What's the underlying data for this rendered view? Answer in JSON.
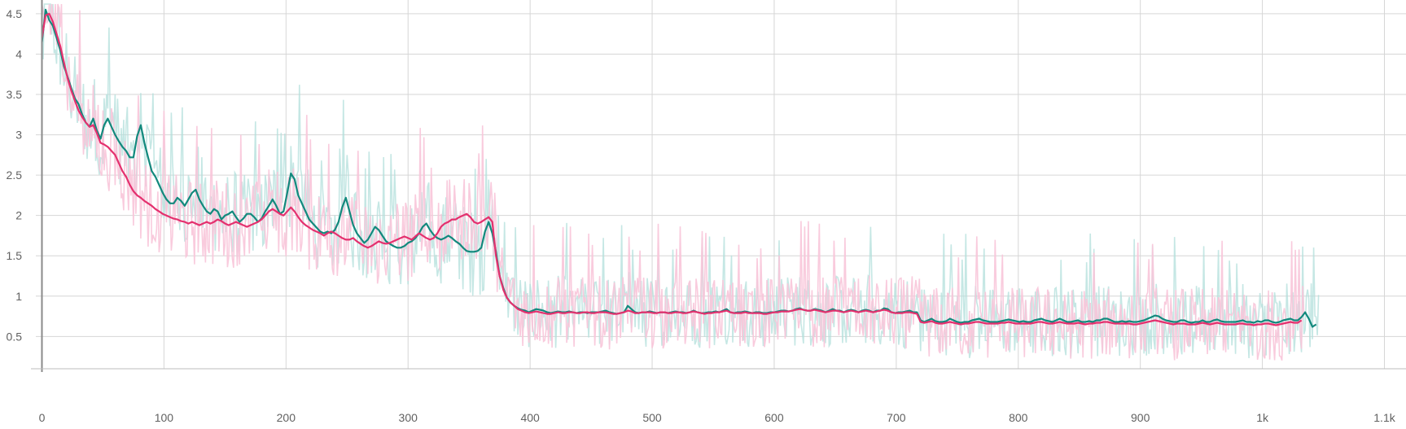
{
  "chart_data": {
    "type": "line",
    "title": "",
    "xlabel": "",
    "ylabel": "",
    "xlim": [
      -5,
      1105
    ],
    "ylim": [
      0.1,
      4.62
    ],
    "grid": true,
    "legend": "none",
    "x_ticks": [
      0,
      100,
      200,
      300,
      400,
      500,
      600,
      700,
      800,
      900,
      1000,
      1100
    ],
    "x_tick_labels": [
      "0",
      "100",
      "200",
      "300",
      "400",
      "500",
      "600",
      "700",
      "800",
      "900",
      "1k",
      "1.1k"
    ],
    "y_ticks": [
      0.5,
      1,
      1.5,
      2,
      2.5,
      3,
      3.5,
      4,
      4.5
    ],
    "y_tick_labels": [
      "0.5",
      "1",
      "1.5",
      "2",
      "2.5",
      "3",
      "3.5",
      "4",
      "4.5"
    ],
    "series": [
      {
        "color": "#12897d",
        "raw_color": "#b2dfdb",
        "x_step": 3,
        "smoothed": [
          4.15,
          4.55,
          4.42,
          4.35,
          4.2,
          4.05,
          3.85,
          3.72,
          3.58,
          3.45,
          3.38,
          3.25,
          3.15,
          3.1,
          3.2,
          3.05,
          2.95,
          3.12,
          3.2,
          3.1,
          3.0,
          2.92,
          2.85,
          2.8,
          2.72,
          2.72,
          2.98,
          3.12,
          2.9,
          2.72,
          2.55,
          2.48,
          2.38,
          2.28,
          2.2,
          2.15,
          2.15,
          2.22,
          2.18,
          2.12,
          2.2,
          2.28,
          2.32,
          2.2,
          2.12,
          2.05,
          2.02,
          2.08,
          2.05,
          1.95,
          2.0,
          2.02,
          2.05,
          1.98,
          1.92,
          1.96,
          2.02,
          2.02,
          1.98,
          1.92,
          1.96,
          2.05,
          2.12,
          2.2,
          2.12,
          2.02,
          2.05,
          2.28,
          2.52,
          2.45,
          2.25,
          2.15,
          2.05,
          1.95,
          1.9,
          1.85,
          1.8,
          1.78,
          1.8,
          1.78,
          1.82,
          1.92,
          2.1,
          2.22,
          2.05,
          1.88,
          1.78,
          1.72,
          1.66,
          1.7,
          1.78,
          1.86,
          1.82,
          1.75,
          1.68,
          1.65,
          1.62,
          1.6,
          1.6,
          1.62,
          1.66,
          1.68,
          1.72,
          1.78,
          1.86,
          1.9,
          1.82,
          1.76,
          1.72,
          1.7,
          1.72,
          1.75,
          1.72,
          1.68,
          1.65,
          1.6,
          1.56,
          1.55,
          1.55,
          1.56,
          1.6,
          1.8,
          1.92,
          1.78,
          1.55,
          1.25,
          1.1,
          0.98,
          0.92,
          0.88,
          0.85,
          0.83,
          0.82,
          0.8,
          0.82,
          0.84,
          0.83,
          0.82,
          0.8,
          0.79,
          0.8,
          0.81,
          0.8,
          0.8,
          0.81,
          0.8,
          0.79,
          0.8,
          0.8,
          0.79,
          0.8,
          0.8,
          0.8,
          0.81,
          0.82,
          0.8,
          0.79,
          0.78,
          0.79,
          0.8,
          0.88,
          0.84,
          0.8,
          0.79,
          0.8,
          0.8,
          0.81,
          0.8,
          0.79,
          0.8,
          0.8,
          0.79,
          0.8,
          0.81,
          0.8,
          0.8,
          0.79,
          0.8,
          0.82,
          0.8,
          0.79,
          0.79,
          0.8,
          0.8,
          0.81,
          0.8,
          0.82,
          0.84,
          0.8,
          0.79,
          0.8,
          0.8,
          0.81,
          0.8,
          0.79,
          0.8,
          0.8,
          0.79,
          0.79,
          0.8,
          0.8,
          0.81,
          0.82,
          0.82,
          0.81,
          0.82,
          0.84,
          0.85,
          0.83,
          0.82,
          0.82,
          0.84,
          0.83,
          0.82,
          0.8,
          0.82,
          0.84,
          0.82,
          0.82,
          0.8,
          0.82,
          0.83,
          0.82,
          0.8,
          0.82,
          0.83,
          0.82,
          0.8,
          0.82,
          0.82,
          0.85,
          0.84,
          0.8,
          0.79,
          0.8,
          0.8,
          0.81,
          0.82,
          0.8,
          0.8,
          0.7,
          0.68,
          0.7,
          0.72,
          0.69,
          0.68,
          0.68,
          0.69,
          0.72,
          0.7,
          0.68,
          0.67,
          0.68,
          0.68,
          0.7,
          0.71,
          0.72,
          0.7,
          0.69,
          0.68,
          0.68,
          0.68,
          0.69,
          0.7,
          0.71,
          0.7,
          0.69,
          0.68,
          0.69,
          0.68,
          0.68,
          0.7,
          0.71,
          0.72,
          0.7,
          0.69,
          0.68,
          0.7,
          0.72,
          0.7,
          0.68,
          0.68,
          0.69,
          0.7,
          0.68,
          0.68,
          0.69,
          0.68,
          0.7,
          0.7,
          0.72,
          0.72,
          0.7,
          0.68,
          0.68,
          0.69,
          0.68,
          0.69,
          0.68,
          0.68,
          0.69,
          0.7,
          0.72,
          0.74,
          0.76,
          0.75,
          0.72,
          0.7,
          0.69,
          0.68,
          0.68,
          0.7,
          0.7,
          0.68,
          0.67,
          0.68,
          0.68,
          0.7,
          0.68,
          0.68,
          0.7,
          0.71,
          0.69,
          0.68,
          0.68,
          0.68,
          0.68,
          0.69,
          0.7,
          0.68,
          0.68,
          0.67,
          0.69,
          0.68,
          0.7,
          0.7,
          0.68,
          0.67,
          0.68,
          0.7,
          0.71,
          0.72,
          0.7,
          0.7,
          0.74,
          0.8,
          0.72,
          0.62,
          0.65
        ]
      },
      {
        "color": "#e4306e",
        "raw_color": "#f8c5d9",
        "x_step": 3,
        "smoothed": [
          4.2,
          4.48,
          4.5,
          4.4,
          4.25,
          4.1,
          3.9,
          3.7,
          3.55,
          3.42,
          3.3,
          3.22,
          3.15,
          3.1,
          3.12,
          3.02,
          2.9,
          2.88,
          2.85,
          2.8,
          2.75,
          2.65,
          2.55,
          2.48,
          2.38,
          2.3,
          2.25,
          2.22,
          2.18,
          2.15,
          2.12,
          2.08,
          2.05,
          2.02,
          2.0,
          1.98,
          1.96,
          1.95,
          1.93,
          1.92,
          1.9,
          1.92,
          1.9,
          1.88,
          1.9,
          1.92,
          1.9,
          1.92,
          1.95,
          1.93,
          1.9,
          1.88,
          1.9,
          1.92,
          1.9,
          1.88,
          1.86,
          1.88,
          1.9,
          1.92,
          1.95,
          2.0,
          2.05,
          2.08,
          2.05,
          2.02,
          2.0,
          2.05,
          2.1,
          2.05,
          1.98,
          1.92,
          1.88,
          1.85,
          1.82,
          1.8,
          1.78,
          1.75,
          1.78,
          1.8,
          1.78,
          1.75,
          1.72,
          1.7,
          1.7,
          1.72,
          1.68,
          1.65,
          1.62,
          1.6,
          1.62,
          1.65,
          1.68,
          1.66,
          1.65,
          1.66,
          1.68,
          1.7,
          1.72,
          1.74,
          1.72,
          1.7,
          1.74,
          1.78,
          1.75,
          1.72,
          1.7,
          1.72,
          1.78,
          1.86,
          1.9,
          1.92,
          1.95,
          1.95,
          1.98,
          2.0,
          2.02,
          1.98,
          1.92,
          1.9,
          1.92,
          1.95,
          1.98,
          1.92,
          1.5,
          1.25,
          1.08,
          0.98,
          0.92,
          0.88,
          0.84,
          0.82,
          0.8,
          0.79,
          0.8,
          0.81,
          0.8,
          0.79,
          0.78,
          0.78,
          0.79,
          0.8,
          0.79,
          0.79,
          0.8,
          0.8,
          0.79,
          0.79,
          0.8,
          0.8,
          0.79,
          0.79,
          0.8,
          0.8,
          0.8,
          0.79,
          0.78,
          0.78,
          0.79,
          0.8,
          0.82,
          0.81,
          0.79,
          0.79,
          0.8,
          0.8,
          0.8,
          0.79,
          0.79,
          0.8,
          0.8,
          0.79,
          0.79,
          0.8,
          0.8,
          0.79,
          0.79,
          0.8,
          0.81,
          0.8,
          0.79,
          0.78,
          0.79,
          0.79,
          0.8,
          0.8,
          0.81,
          0.82,
          0.8,
          0.79,
          0.79,
          0.79,
          0.8,
          0.79,
          0.79,
          0.79,
          0.79,
          0.78,
          0.78,
          0.79,
          0.8,
          0.8,
          0.81,
          0.81,
          0.81,
          0.82,
          0.83,
          0.84,
          0.83,
          0.82,
          0.82,
          0.83,
          0.82,
          0.81,
          0.8,
          0.81,
          0.82,
          0.82,
          0.81,
          0.8,
          0.81,
          0.82,
          0.81,
          0.8,
          0.81,
          0.82,
          0.81,
          0.8,
          0.81,
          0.82,
          0.83,
          0.82,
          0.8,
          0.79,
          0.79,
          0.79,
          0.8,
          0.8,
          0.79,
          0.78,
          0.68,
          0.67,
          0.68,
          0.69,
          0.67,
          0.66,
          0.66,
          0.67,
          0.68,
          0.67,
          0.66,
          0.65,
          0.66,
          0.66,
          0.67,
          0.68,
          0.68,
          0.67,
          0.66,
          0.66,
          0.66,
          0.66,
          0.67,
          0.67,
          0.68,
          0.67,
          0.66,
          0.66,
          0.66,
          0.66,
          0.66,
          0.67,
          0.68,
          0.68,
          0.67,
          0.66,
          0.66,
          0.67,
          0.68,
          0.67,
          0.66,
          0.66,
          0.66,
          0.67,
          0.66,
          0.65,
          0.66,
          0.66,
          0.67,
          0.67,
          0.68,
          0.68,
          0.67,
          0.66,
          0.66,
          0.66,
          0.66,
          0.66,
          0.65,
          0.65,
          0.66,
          0.67,
          0.68,
          0.69,
          0.7,
          0.69,
          0.68,
          0.67,
          0.66,
          0.65,
          0.66,
          0.66,
          0.66,
          0.65,
          0.65,
          0.65,
          0.66,
          0.67,
          0.66,
          0.65,
          0.66,
          0.67,
          0.66,
          0.65,
          0.65,
          0.65,
          0.65,
          0.66,
          0.66,
          0.65,
          0.65,
          0.64,
          0.65,
          0.65,
          0.66,
          0.66,
          0.65,
          0.64,
          0.65,
          0.66,
          0.67,
          0.68,
          0.67,
          0.67,
          0.7
        ]
      }
    ]
  }
}
